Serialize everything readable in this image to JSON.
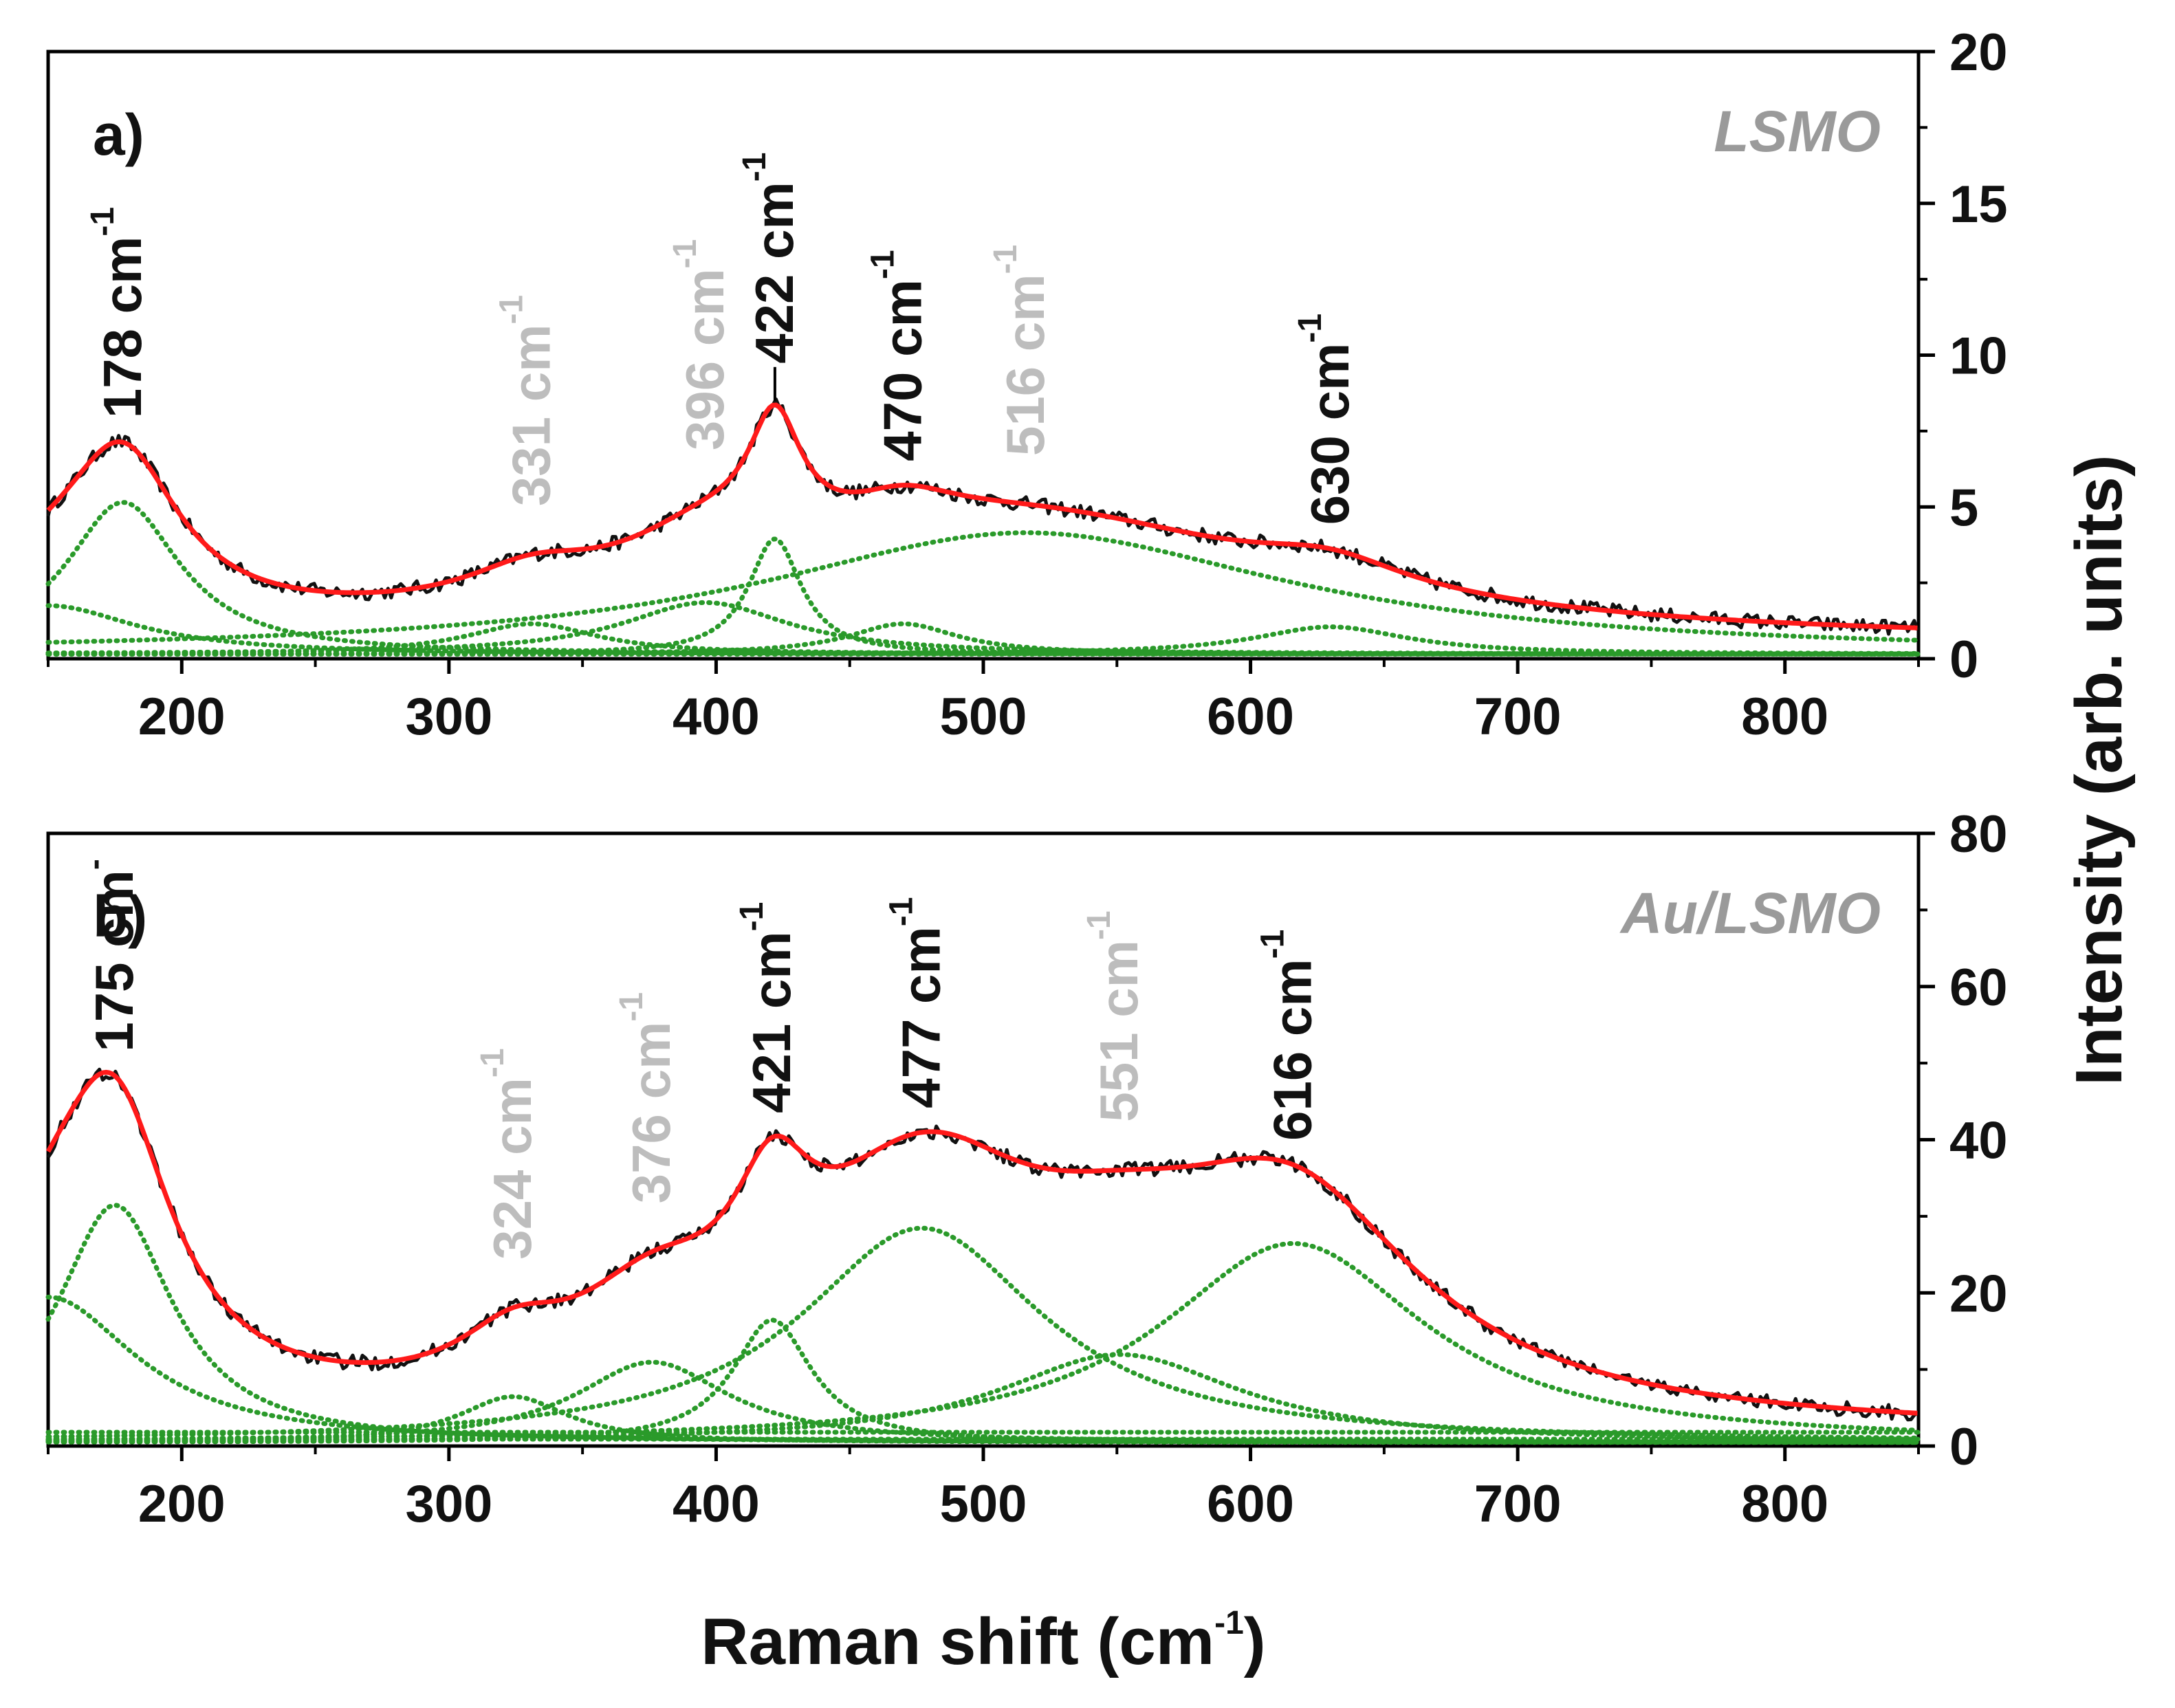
{
  "chart_data": {
    "type": "line",
    "xlabel": "Raman shift (cm",
    "xlabel_sup": "-1",
    "xlabel_close": ")",
    "ylabel": "Intensity (arb. units)",
    "xlim": [
      150,
      850
    ],
    "xticks": [
      200,
      300,
      400,
      500,
      600,
      700,
      800
    ],
    "colors": {
      "data": "#111111",
      "fit": "#ff1a1a",
      "component": "#2a9a2a",
      "main_label": "#111111",
      "minor_label": "#bdbdbd",
      "sample_label": "#9a9a9a"
    },
    "panels": [
      {
        "panel_label": "a)",
        "sample": "LSMO",
        "ylim": [
          0,
          20
        ],
        "yticks": [
          0,
          5,
          10,
          15,
          20
        ],
        "background": {
          "offset": 0.5,
          "amp": 0.0
        },
        "components": [
          {
            "center": 178,
            "amp": 5.0,
            "width": 26
          },
          {
            "center": 331,
            "amp": 1.0,
            "width": 30
          },
          {
            "center": 396,
            "amp": 1.7,
            "width": 38
          },
          {
            "center": 422,
            "amp": 3.8,
            "width": 12
          },
          {
            "center": 470,
            "amp": 1.0,
            "width": 25
          },
          {
            "center": 516,
            "amp": 4.0,
            "width": 120
          },
          {
            "center": 630,
            "amp": 0.9,
            "width": 35
          },
          {
            "center": 150,
            "amp": 1.6,
            "width": 40
          }
        ],
        "peaks": [
          {
            "label": "178 cm",
            "sup": "-1",
            "x": 178,
            "style": "main"
          },
          {
            "label": "331 cm",
            "sup": "-1",
            "x": 331,
            "style": "minor"
          },
          {
            "label": "396 cm",
            "sup": "-1",
            "x": 396,
            "style": "minor"
          },
          {
            "label": "422 cm",
            "sup": "-1",
            "x": 422,
            "style": "main"
          },
          {
            "label": "470 cm",
            "sup": "-1",
            "x": 470,
            "style": "main"
          },
          {
            "label": "516 cm",
            "sup": "-1",
            "x": 516,
            "style": "minor"
          },
          {
            "label": "630 cm",
            "sup": "-1",
            "x": 630,
            "style": "main"
          }
        ]
      },
      {
        "panel_label": "b)",
        "sample": "Au/LSMO",
        "ylim": [
          0,
          80
        ],
        "yticks": [
          0,
          20,
          40,
          60,
          80
        ],
        "background": {
          "offset": 1.5,
          "amp": 0.0
        },
        "components": [
          {
            "center": 175,
            "amp": 31.0,
            "width": 26
          },
          {
            "center": 324,
            "amp": 6.0,
            "width": 25
          },
          {
            "center": 376,
            "amp": 10.5,
            "width": 35
          },
          {
            "center": 421,
            "amp": 16.0,
            "width": 18
          },
          {
            "center": 477,
            "amp": 28.0,
            "width": 55
          },
          {
            "center": 551,
            "amp": 11.5,
            "width": 55
          },
          {
            "center": 616,
            "amp": 26.0,
            "width": 60
          },
          {
            "center": 150,
            "amp": 19.0,
            "width": 40
          }
        ],
        "peaks": [
          {
            "label": "175 cm",
            "sup": "-",
            "x": 175,
            "style": "main"
          },
          {
            "label": "324 cm",
            "sup": "-1",
            "x": 324,
            "style": "minor"
          },
          {
            "label": "376 cm",
            "sup": "-1",
            "x": 376,
            "style": "minor"
          },
          {
            "label": "421 cm",
            "sup": "-1",
            "x": 421,
            "style": "main"
          },
          {
            "label": "477 cm",
            "sup": "-1",
            "x": 477,
            "style": "main"
          },
          {
            "label": "551 cm",
            "sup": "-1",
            "x": 551,
            "style": "minor"
          },
          {
            "label": "616 cm",
            "sup": "-1",
            "x": 616,
            "style": "main"
          }
        ]
      }
    ]
  }
}
